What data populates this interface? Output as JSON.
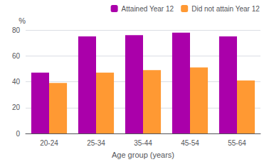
{
  "chart_data": {
    "type": "bar",
    "categories": [
      "20-24",
      "25-34",
      "35-44",
      "45-54",
      "55-64"
    ],
    "series": [
      {
        "name": "Attained Year 12",
        "color": "#AA00AA",
        "values": [
          47,
          75,
          76,
          78,
          75
        ]
      },
      {
        "name": "Did not attain Year 12",
        "color": "#FF9933",
        "values": [
          39,
          47,
          49,
          51,
          41
        ]
      }
    ],
    "xlabel": "Age group (years)",
    "ylabel": "%",
    "ylim": [
      0,
      80
    ],
    "yticks": [
      0,
      20,
      40,
      60,
      80
    ],
    "grid": true,
    "legend": "upper right"
  }
}
